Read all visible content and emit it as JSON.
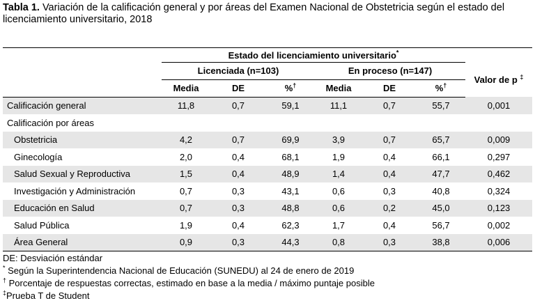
{
  "caption": {
    "label": "Tabla 1.",
    "text": " Variación de la calificación general y por áreas del Examen Nacional de Obstetricia según el estado del licenciamiento universitario, 2018"
  },
  "header": {
    "group_title": "Estado del licenciamiento universitario",
    "group_mark": "*",
    "col_licenciada": "Licenciada (n=103)",
    "col_proceso": "En proceso (n=147)",
    "valor_p": "Valor de p",
    "valor_p_mark": "‡",
    "media": "Media",
    "de": "DE",
    "pct": "%",
    "pct_mark": "†"
  },
  "rows": [
    {
      "label": "Calificación general",
      "m1": "11,8",
      "de1": "0,7",
      "p1": "59,1",
      "m2": "11,1",
      "de2": "0,7",
      "p2": "55,7",
      "pv": "0,001"
    },
    {
      "label": "Calificación por áreas"
    },
    {
      "label": "Obstetricia",
      "m1": "4,2",
      "de1": "0,7",
      "p1": "69,9",
      "m2": "3,9",
      "de2": "0,7",
      "p2": "65,7",
      "pv": "0,009"
    },
    {
      "label": "Ginecología",
      "m1": "2,0",
      "de1": "0,4",
      "p1": "68,1",
      "m2": "1,9",
      "de2": "0,4",
      "p2": "66,1",
      "pv": "0,297"
    },
    {
      "label": "Salud Sexual y Reproductiva",
      "m1": "1,5",
      "de1": "0,4",
      "p1": "48,9",
      "m2": "1,4",
      "de2": "0,4",
      "p2": "47,7",
      "pv": "0,462"
    },
    {
      "label": "Investigación y Administración",
      "m1": "0,7",
      "de1": "0,3",
      "p1": "43,1",
      "m2": "0,6",
      "de2": "0,3",
      "p2": "40,8",
      "pv": "0,324"
    },
    {
      "label": "Educación en Salud",
      "m1": "0,7",
      "de1": "0,3",
      "p1": "48,8",
      "m2": "0,6",
      "de2": "0,2",
      "p2": "45,0",
      "pv": "0,123"
    },
    {
      "label": "Salud Pública",
      "m1": "1,9",
      "de1": "0,4",
      "p1": "62,3",
      "m2": "1,7",
      "de2": "0,4",
      "p2": "56,7",
      "pv": "0,002"
    },
    {
      "label": "Área General",
      "m1": "0,9",
      "de1": "0,3",
      "p1": "44,3",
      "m2": "0,8",
      "de2": "0,3",
      "p2": "38,8",
      "pv": "0,006"
    }
  ],
  "notes": {
    "n1": "DE: Desviación estándar",
    "n2_mark": "*",
    "n2": " Según la Superintendencia Nacional de Educación (SUNEDU) al 24 de enero de 2019",
    "n3_mark": "†",
    "n3": " Porcentaje de respuestas correctas, estimado en base a la media / máximo puntaje posible",
    "n4_mark": "‡",
    "n4": "Prueba T de Student"
  }
}
